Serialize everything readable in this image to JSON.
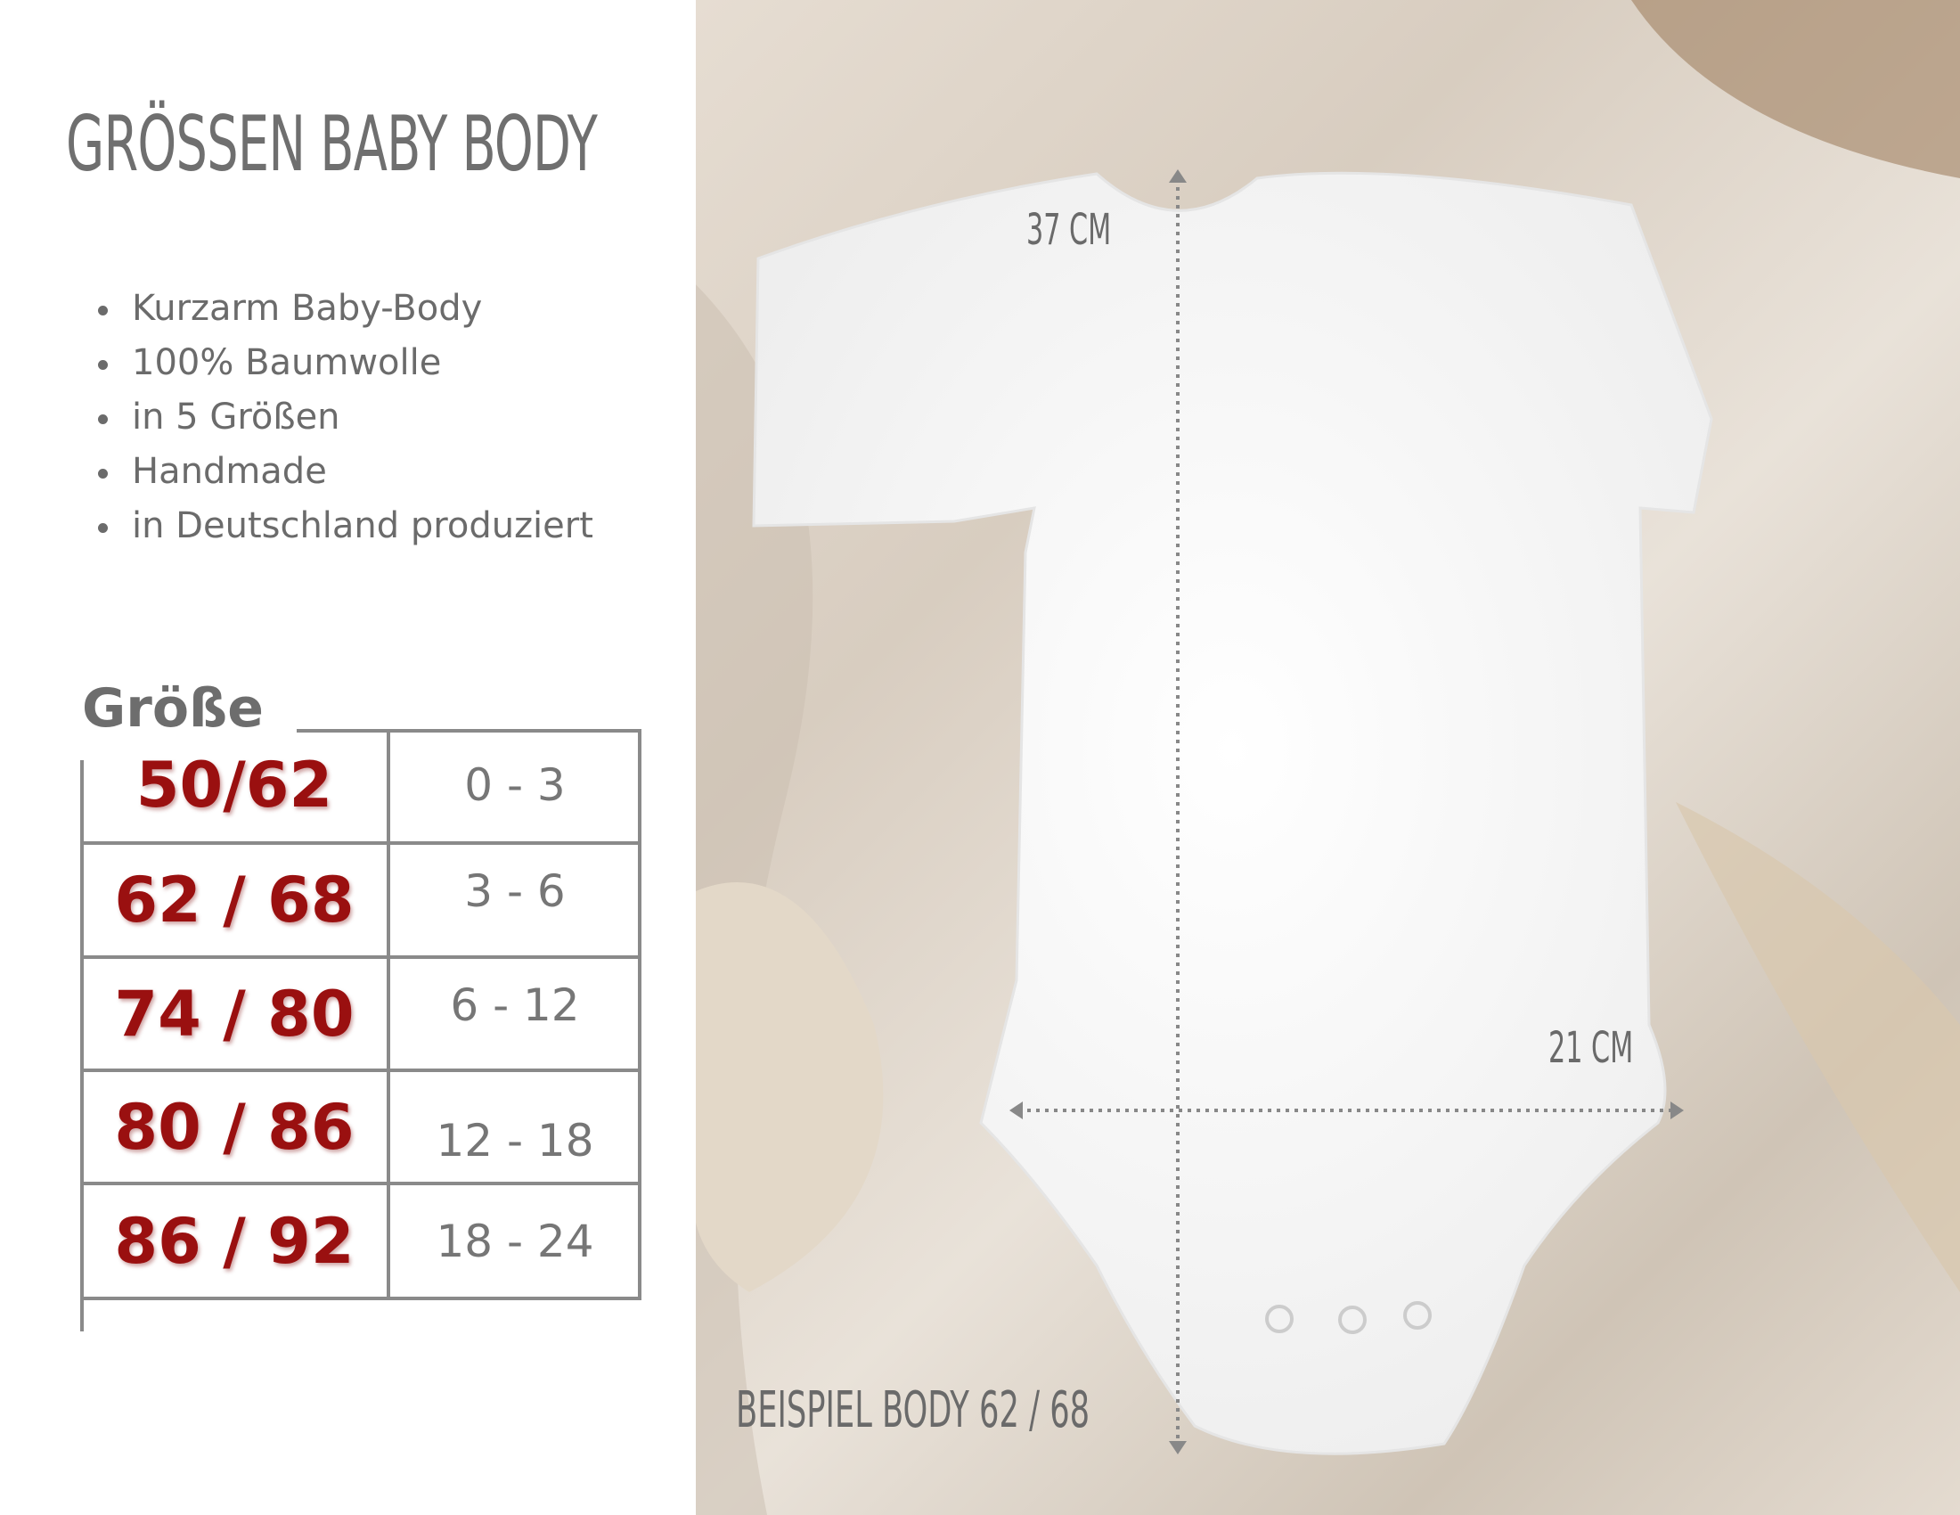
{
  "title": "Größen Baby Body",
  "features": [
    "Kurzarm Baby-Body",
    "100% Baumwolle",
    "in 5 Größen",
    "Handmade",
    "in Deutschland produziert"
  ],
  "size_table": {
    "label": "Größe",
    "rows": [
      {
        "size": "50/62",
        "age": "0 - 3"
      },
      {
        "size": "62 / 68",
        "age": "3 - 6"
      },
      {
        "size": "74 / 80",
        "age": "6 - 12"
      },
      {
        "size": "80 / 86",
        "age": "12 - 18"
      },
      {
        "size": "86 / 92",
        "age": "18 - 24"
      }
    ]
  },
  "photo": {
    "length_label": "37 CM",
    "width_label": "21 CM",
    "caption": "BEISPIEL BODY 62 / 68"
  },
  "colors": {
    "size_red": "#9a1010",
    "text_gray": "#6b6b6b",
    "line_gray": "#8a8a8a"
  }
}
